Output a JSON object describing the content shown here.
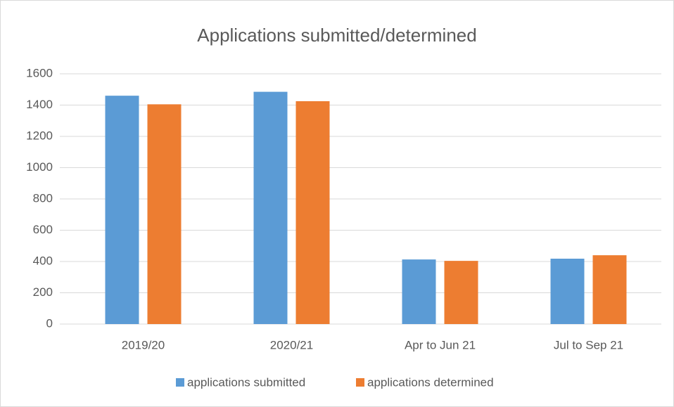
{
  "chart_data": {
    "type": "bar",
    "title": "Applications submitted/determined",
    "categories": [
      "2019/20",
      "2020/21",
      "Apr to Jun 21",
      "Jul to Sep 21"
    ],
    "series": [
      {
        "name": "applications submitted",
        "color": "#5b9bd5",
        "values": [
          1460,
          1485,
          413,
          418
        ]
      },
      {
        "name": "applications determined",
        "color": "#ed7d31",
        "values": [
          1405,
          1425,
          404,
          440
        ]
      }
    ],
    "ylim": [
      0,
      1600
    ],
    "yticks": [
      0,
      200,
      400,
      600,
      800,
      1000,
      1200,
      1400,
      1600
    ],
    "grid": true,
    "legend": "bottom"
  }
}
